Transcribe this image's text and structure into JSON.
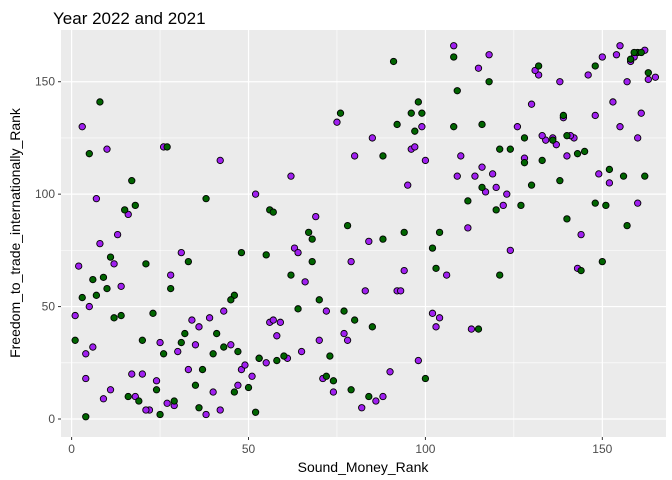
{
  "chart_data": {
    "type": "scatter",
    "title": "Year 2022 and 2021",
    "xlabel": "Sound_Money_Rank",
    "ylabel": "Freedom_to_trade_internationally_Rank",
    "xlim": [
      -3,
      168
    ],
    "ylim": [
      -8,
      173
    ],
    "xticks": [
      0,
      50,
      100,
      150
    ],
    "yticks": [
      0,
      50,
      100,
      150
    ],
    "grid": true,
    "colors": {
      "panel": "#ebebeb",
      "grid_major": "#ffffff",
      "point_stroke": "#000000"
    },
    "series": [
      {
        "color": "#a020f0",
        "x": [
          1,
          2,
          3,
          4,
          6,
          8,
          10,
          12,
          14,
          16,
          20,
          22,
          26,
          28,
          30,
          33,
          36,
          40,
          42,
          45,
          48,
          52,
          55,
          58,
          62,
          66,
          70,
          75,
          80,
          84,
          88,
          92,
          96,
          100,
          104,
          108,
          112,
          116,
          120,
          124,
          128,
          132,
          136,
          140,
          144,
          148,
          152,
          155,
          158,
          160,
          163,
          4,
          7,
          9,
          11,
          17,
          21,
          25,
          29,
          34,
          38,
          42,
          47,
          51,
          56,
          61,
          65,
          69,
          74,
          78,
          82,
          86,
          90,
          94,
          98,
          102,
          106,
          110,
          114,
          118,
          122,
          126,
          130,
          134,
          138,
          142,
          146,
          150,
          154,
          157,
          161,
          165,
          5,
          13,
          24,
          31,
          43,
          53,
          63,
          72,
          83,
          93,
          103,
          113,
          123,
          133,
          143,
          153,
          160,
          18,
          39,
          59,
          79,
          99,
          119,
          139,
          159,
          27,
          49,
          71,
          95,
          117,
          141,
          162,
          35,
          57,
          77,
          97,
          115,
          137,
          155,
          64,
          85,
          109,
          131,
          149
        ],
        "y": [
          46,
          68,
          130,
          29,
          32,
          78,
          120,
          69,
          59,
          91,
          20,
          4,
          121,
          64,
          30,
          22,
          41,
          12,
          115,
          33,
          22,
          100,
          25,
          37,
          108,
          61,
          35,
          132,
          117,
          79,
          10,
          57,
          120,
          115,
          45,
          166,
          85,
          112,
          103,
          75,
          116,
          153,
          125,
          117,
          82,
          135,
          105,
          166,
          159,
          96,
          151,
          18,
          98,
          9,
          13,
          20,
          4,
          34,
          6,
          44,
          2,
          4,
          15,
          19,
          43,
          27,
          30,
          90,
          12,
          35,
          5,
          8,
          21,
          66,
          26,
          47,
          64,
          117,
          108,
          162,
          95,
          130,
          140,
          124,
          150,
          125,
          153,
          161,
          162,
          150,
          136,
          152,
          50,
          82,
          17,
          74,
          48,
          27,
          76,
          48,
          57,
          57,
          41,
          40,
          100,
          126,
          67,
          141,
          125,
          10,
          45,
          43,
          70,
          130,
          109,
          134,
          161,
          7,
          24,
          18,
          104,
          101,
          126,
          164,
          33,
          44,
          38,
          121,
          156,
          122,
          130,
          74,
          125,
          108,
          155,
          109
        ]
      },
      {
        "color": "#006400",
        "x": [
          1,
          3,
          4,
          6,
          8,
          10,
          12,
          15,
          17,
          19,
          21,
          23,
          25,
          27,
          29,
          32,
          35,
          37,
          40,
          43,
          46,
          50,
          53,
          56,
          60,
          64,
          68,
          72,
          76,
          80,
          84,
          88,
          92,
          96,
          100,
          104,
          108,
          112,
          116,
          120,
          124,
          128,
          132,
          136,
          140,
          144,
          148,
          152,
          156,
          160,
          163,
          5,
          9,
          14,
          20,
          26,
          31,
          36,
          41,
          46,
          52,
          57,
          62,
          67,
          73,
          79,
          85,
          91,
          97,
          103,
          109,
          115,
          121,
          127,
          133,
          139,
          145,
          151,
          157,
          162,
          7,
          18,
          28,
          38,
          48,
          58,
          68,
          78,
          88,
          98,
          108,
          118,
          128,
          138,
          148,
          158,
          11,
          33,
          55,
          77,
          99,
          121,
          143,
          161,
          24,
          47,
          70,
          94,
          116,
          140,
          159,
          16,
          45,
          74,
          102,
          130,
          150
        ],
        "y": [
          35,
          54,
          1,
          62,
          141,
          58,
          45,
          93,
          106,
          8,
          69,
          47,
          2,
          121,
          8,
          38,
          15,
          22,
          29,
          32,
          55,
          14,
          27,
          93,
          28,
          49,
          80,
          19,
          136,
          44,
          10,
          117,
          131,
          136,
          18,
          83,
          161,
          97,
          131,
          93,
          120,
          114,
          157,
          124,
          126,
          66,
          157,
          111,
          108,
          163,
          154,
          118,
          63,
          46,
          35,
          29,
          34,
          5,
          38,
          12,
          3,
          92,
          64,
          83,
          28,
          13,
          41,
          159,
          128,
          67,
          146,
          40,
          120,
          95,
          115,
          135,
          119,
          95,
          86,
          108,
          55,
          95,
          58,
          98,
          74,
          26,
          70,
          86,
          80,
          141,
          130,
          150,
          125,
          106,
          96,
          160,
          72,
          70,
          73,
          48,
          136,
          64,
          118,
          163,
          13,
          30,
          53,
          83,
          103,
          89,
          163,
          10,
          53,
          17,
          76,
          104,
          70
        ]
      }
    ]
  }
}
